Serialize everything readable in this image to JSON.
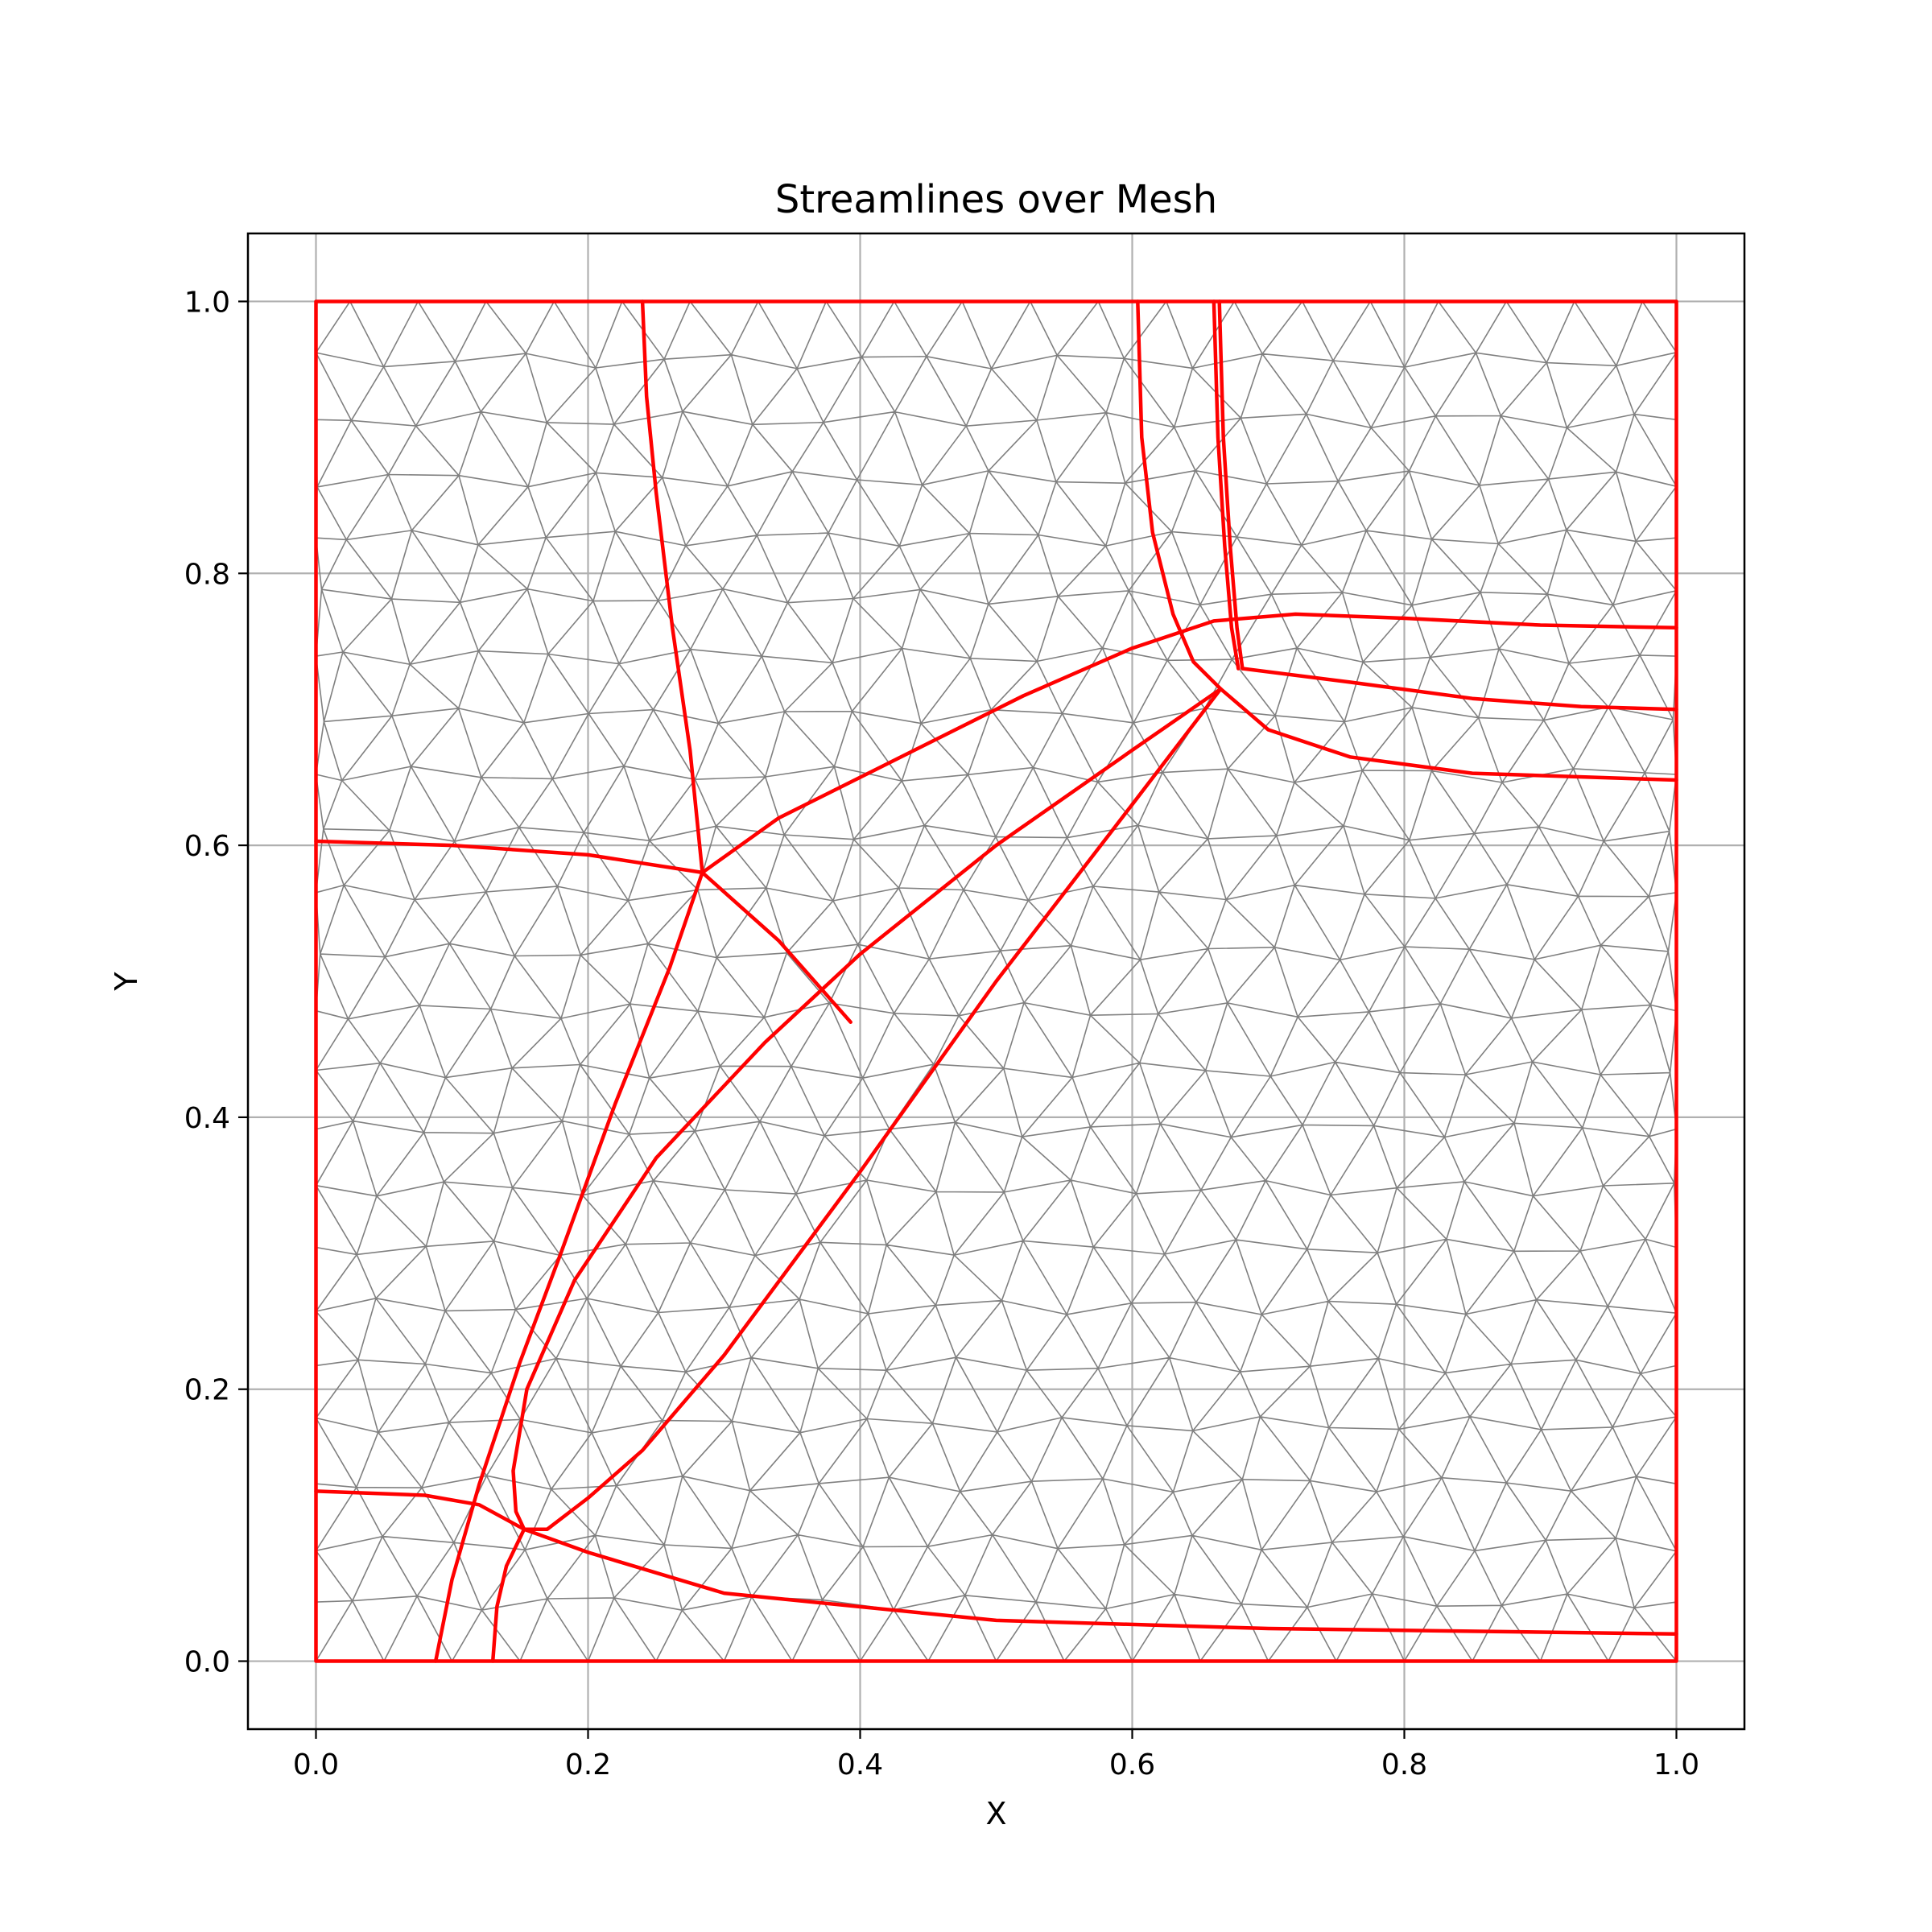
{
  "chart_data": {
    "type": "line",
    "title": "Streamlines over Mesh",
    "xlabel": "X",
    "ylabel": "Y",
    "xlim": [
      -0.05,
      1.05
    ],
    "ylim": [
      -0.05,
      1.05
    ],
    "xticks": [
      "0.0",
      "0.2",
      "0.4",
      "0.6",
      "0.8",
      "1.0"
    ],
    "yticks": [
      "0.0",
      "0.2",
      "0.4",
      "0.6",
      "0.8",
      "1.0"
    ],
    "grid": true,
    "colors": {
      "streamline": "#ff0000",
      "mesh": "#808080",
      "grid": "#b0b0b0",
      "axes": "#000000"
    },
    "mesh": {
      "type": "triangular",
      "domain_x": [
        0,
        1
      ],
      "domain_y": [
        0,
        1
      ],
      "approx_spacing": 0.05
    },
    "series": [
      {
        "points": [
          [
            0,
            0
          ],
          [
            1,
            0
          ],
          [
            1,
            1
          ],
          [
            0,
            1
          ],
          [
            0,
            0
          ]
        ]
      },
      {
        "points": [
          [
            0.24,
            1.0
          ],
          [
            0.243,
            0.93
          ],
          [
            0.25,
            0.86
          ],
          [
            0.262,
            0.76
          ],
          [
            0.275,
            0.67
          ],
          [
            0.284,
            0.58
          ]
        ]
      },
      {
        "points": [
          [
            0.0,
            0.603
          ],
          [
            0.1,
            0.6
          ],
          [
            0.2,
            0.593
          ],
          [
            0.284,
            0.58
          ]
        ]
      },
      {
        "points": [
          [
            0.284,
            0.58
          ],
          [
            0.34,
            0.53
          ],
          [
            0.393,
            0.47
          ]
        ]
      },
      {
        "points": [
          [
            0.284,
            0.58
          ],
          [
            0.34,
            0.62
          ],
          [
            0.42,
            0.66
          ],
          [
            0.52,
            0.71
          ],
          [
            0.6,
            0.745
          ],
          [
            0.66,
            0.765
          ],
          [
            0.72,
            0.77
          ],
          [
            0.8,
            0.767
          ],
          [
            0.9,
            0.762
          ],
          [
            1.0,
            0.76
          ]
        ]
      },
      {
        "points": [
          [
            0.604,
            1.0
          ],
          [
            0.607,
            0.9
          ],
          [
            0.615,
            0.83
          ],
          [
            0.63,
            0.77
          ],
          [
            0.645,
            0.735
          ],
          [
            0.665,
            0.715
          ]
        ]
      },
      {
        "points": [
          [
            0.66,
            1.0
          ],
          [
            0.663,
            0.9
          ],
          [
            0.668,
            0.82
          ],
          [
            0.673,
            0.76
          ],
          [
            0.678,
            0.73
          ]
        ]
      },
      {
        "points": [
          [
            0.664,
            1.0
          ],
          [
            0.667,
            0.9
          ],
          [
            0.672,
            0.82
          ],
          [
            0.677,
            0.76
          ],
          [
            0.681,
            0.73
          ]
        ]
      },
      {
        "points": [
          [
            0.681,
            0.73
          ],
          [
            0.76,
            0.72
          ],
          [
            0.85,
            0.708
          ],
          [
            0.93,
            0.702
          ],
          [
            1.0,
            0.7
          ]
        ]
      },
      {
        "points": [
          [
            0.665,
            0.715
          ],
          [
            0.7,
            0.685
          ],
          [
            0.76,
            0.665
          ],
          [
            0.85,
            0.653
          ],
          [
            1.0,
            0.648
          ]
        ]
      },
      {
        "points": [
          [
            0.665,
            0.715
          ],
          [
            0.6,
            0.67
          ],
          [
            0.5,
            0.6
          ],
          [
            0.4,
            0.52
          ],
          [
            0.33,
            0.455
          ],
          [
            0.25,
            0.37
          ],
          [
            0.19,
            0.28
          ],
          [
            0.155,
            0.2
          ],
          [
            0.145,
            0.14
          ],
          [
            0.147,
            0.11
          ],
          [
            0.153,
            0.097
          ]
        ]
      },
      {
        "points": [
          [
            0.665,
            0.715
          ],
          [
            0.6,
            0.63
          ],
          [
            0.5,
            0.5
          ],
          [
            0.4,
            0.36
          ],
          [
            0.3,
            0.225
          ],
          [
            0.24,
            0.155
          ],
          [
            0.2,
            0.12
          ],
          [
            0.17,
            0.097
          ],
          [
            0.153,
            0.097
          ]
        ]
      },
      {
        "points": [
          [
            0.284,
            0.58
          ],
          [
            0.26,
            0.51
          ],
          [
            0.22,
            0.41
          ],
          [
            0.18,
            0.3
          ],
          [
            0.15,
            0.22
          ],
          [
            0.12,
            0.13
          ],
          [
            0.1,
            0.06
          ],
          [
            0.088,
            0.0
          ]
        ]
      },
      {
        "points": [
          [
            0.0,
            0.125
          ],
          [
            0.08,
            0.122
          ],
          [
            0.12,
            0.115
          ],
          [
            0.153,
            0.097
          ],
          [
            0.2,
            0.08
          ],
          [
            0.3,
            0.05
          ],
          [
            0.5,
            0.03
          ],
          [
            0.7,
            0.024
          ],
          [
            1.0,
            0.02
          ]
        ]
      },
      {
        "points": [
          [
            0.153,
            0.097
          ],
          [
            0.14,
            0.07
          ],
          [
            0.133,
            0.04
          ],
          [
            0.13,
            0.0
          ]
        ]
      }
    ]
  }
}
